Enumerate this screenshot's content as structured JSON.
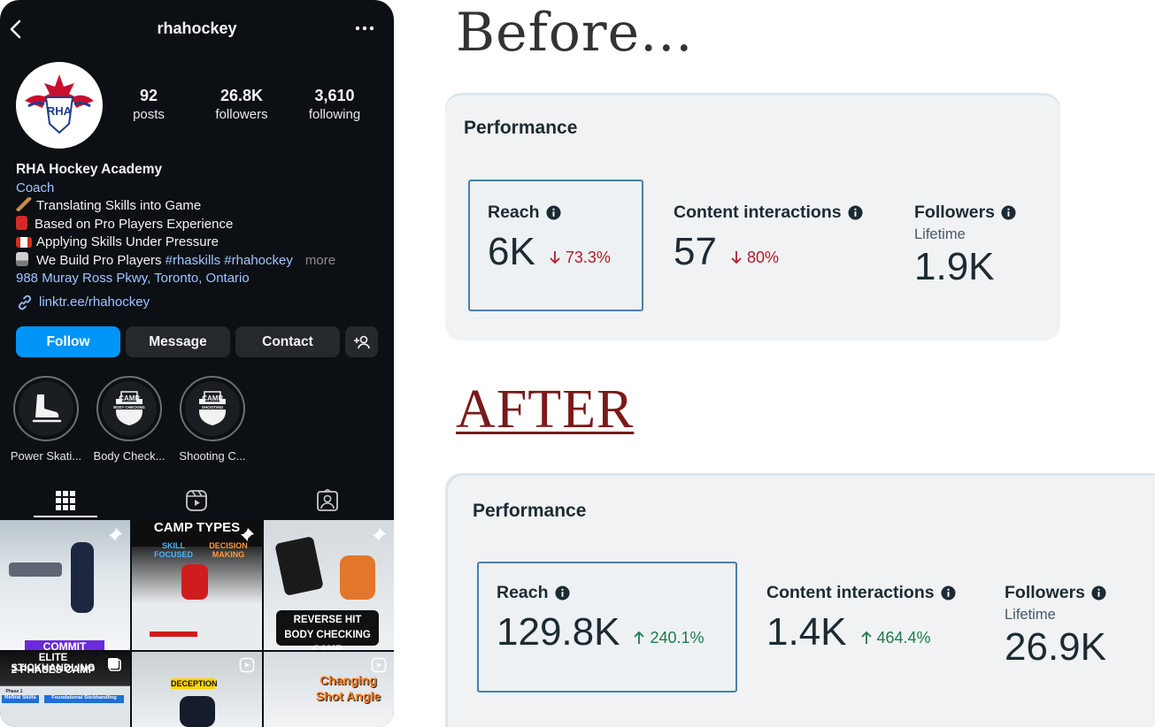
{
  "profile": {
    "handle": "rhahockey",
    "stats": {
      "posts": {
        "value": "92",
        "label": "posts"
      },
      "followers": {
        "value": "26.8K",
        "label": "followers"
      },
      "following": {
        "value": "3,610",
        "label": "following"
      }
    },
    "name": "RHA Hockey Academy",
    "category": "Coach",
    "bio_lines": [
      "Translating Skills into Game",
      "Based on Pro Players Experience",
      "Applying Skills Under Pressure",
      "We Build Pro Players"
    ],
    "hashtags": "#rhaskills #rhahockey",
    "more": "more",
    "address": "988 Muray Ross Pkwy, Toronto, Ontario",
    "link": "linktr.ee/rhahockey",
    "buttons": {
      "follow": "Follow",
      "message": "Message",
      "contact": "Contact"
    },
    "highlights": [
      "Power Skati...",
      "Body Check...",
      "Shooting C..."
    ],
    "highlight_badges": {
      "camp": "CAMP",
      "body_checking": "BODY CHECKING",
      "shooting": "SHOOTING"
    },
    "logo_letters": "RHA",
    "grid_text": {
      "camp_types": "CAMP TYPES",
      "skill_focused": "SKILL FOCUSED",
      "decision_making": "DECISION MAKING",
      "reverse_hit": "REVERSE HIT",
      "body_checking_camp": "BODY CHECKING CAMP",
      "commit": "COMMIT",
      "elite_stickhandling": "ELITE STICKHANDLING",
      "two_phases_camp": "2-PHASES CAMP",
      "phase1": "Phase 1",
      "refine_skills": "Refine Skills",
      "foundational": "Foundational Stickhandling",
      "deception": "DECEPTION",
      "changing": "Changing",
      "shot_angle": "Shot Angle"
    }
  },
  "before": {
    "heading": "Before...",
    "title": "Performance",
    "metrics": [
      {
        "label": "Reach",
        "value": "6K",
        "change": "73.3%",
        "direction": "down"
      },
      {
        "label": "Content interactions",
        "value": "57",
        "change": "80%",
        "direction": "down"
      },
      {
        "label": "Followers",
        "sub": "Lifetime",
        "value": "1.9K"
      }
    ]
  },
  "after": {
    "heading": "AFTER",
    "title": "Performance",
    "metrics": [
      {
        "label": "Reach",
        "value": "129.8K",
        "change": "240.1%",
        "direction": "up"
      },
      {
        "label": "Content interactions",
        "value": "1.4K",
        "change": "464.4%",
        "direction": "up"
      },
      {
        "label": "Followers",
        "sub": "Lifetime",
        "value": "26.9K"
      }
    ]
  },
  "colors": {
    "follow_button": "#0095f6",
    "link_blue": "#a0c4ff",
    "down_red": "#b01c2e",
    "up_green": "#1f7a4a",
    "after_heading": "#7a1a1a",
    "card_background": "#f1f2f4"
  },
  "icons": [
    "back-arrow-icon",
    "more-options-icon",
    "link-icon",
    "add-person-icon",
    "grid-icon",
    "reels-icon",
    "tagged-icon",
    "pin-icon",
    "reel-badge-icon",
    "info-icon",
    "arrow-down-icon",
    "arrow-up-icon",
    "skate-icon"
  ]
}
